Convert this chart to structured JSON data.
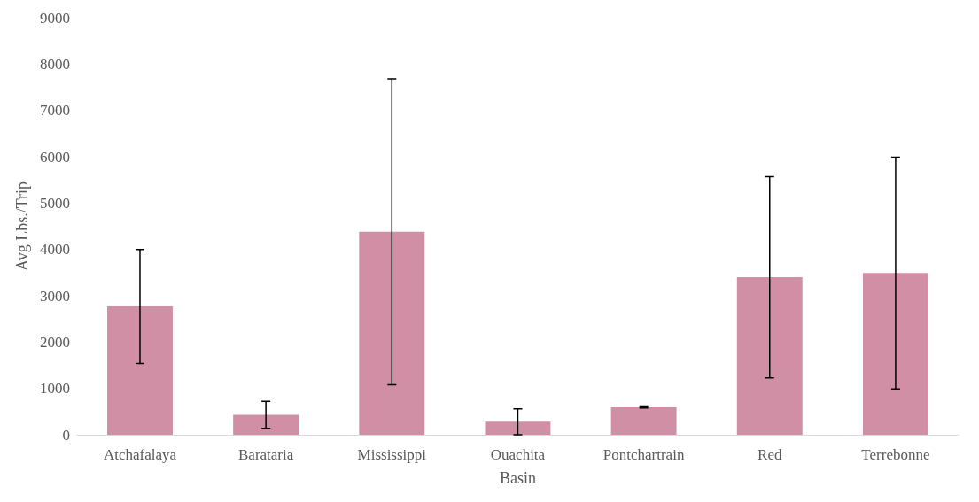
{
  "chart_data": {
    "type": "bar",
    "xlabel": "Basin",
    "ylabel": "Avg Lbs./Trip",
    "categories": [
      "Atchafalaya",
      "Barataria",
      "Mississippi",
      "Ouachita",
      "Pontchartrain",
      "Red",
      "Terrebonne"
    ],
    "values": [
      2770,
      430,
      4380,
      280,
      590,
      3400,
      3490
    ],
    "errors": [
      1230,
      290,
      3300,
      280,
      10,
      2170,
      2500
    ],
    "color": "#d08fa5",
    "ylim": [
      0,
      9000
    ],
    "yticks": [
      0,
      1000,
      2000,
      3000,
      4000,
      5000,
      6000,
      7000,
      8000,
      9000
    ]
  }
}
